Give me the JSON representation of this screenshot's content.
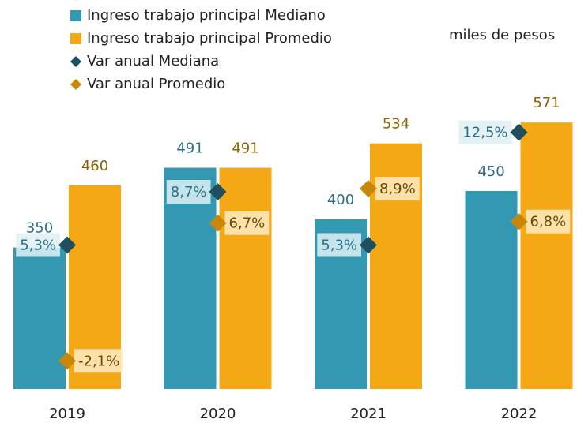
{
  "chart_data": {
    "type": "bar",
    "subtitle": "miles de pesos",
    "categories": [
      "2019",
      "2020",
      "2021",
      "2022"
    ],
    "ylim": [
      100,
      620
    ],
    "y2lim": [
      -3.9,
      14.9
    ],
    "series": [
      {
        "name": "Ingreso trabajo principal Mediano",
        "type": "bar",
        "color": "#3399b3",
        "label_color": "#2d6f85",
        "values": [
          350,
          491,
          400,
          450
        ]
      },
      {
        "name": "Ingreso trabajo principal Promedio",
        "type": "bar",
        "color": "#f5a815",
        "label_color": "#8a6200",
        "values": [
          460,
          491,
          534,
          571
        ]
      },
      {
        "name": "Var anual Mediana",
        "type": "scatter",
        "axis": "y2",
        "color": "#1f4e5f",
        "label_color": "#2d6f85",
        "box_color": "#dff0f5",
        "values": [
          5.3,
          8.7,
          5.3,
          12.5
        ],
        "value_labels": [
          "5,3%",
          "8,7%",
          "5,3%",
          "12,5%"
        ]
      },
      {
        "name": "Var anual Promedio",
        "type": "scatter",
        "axis": "y2",
        "color": "#c8860a",
        "label_color": "#6b4a00",
        "box_color": "#fdebc6",
        "values": [
          -2.1,
          6.7,
          8.9,
          6.8
        ],
        "value_labels": [
          "-2,1%",
          "6,7%",
          "8,9%",
          "6,8%"
        ]
      }
    ]
  }
}
